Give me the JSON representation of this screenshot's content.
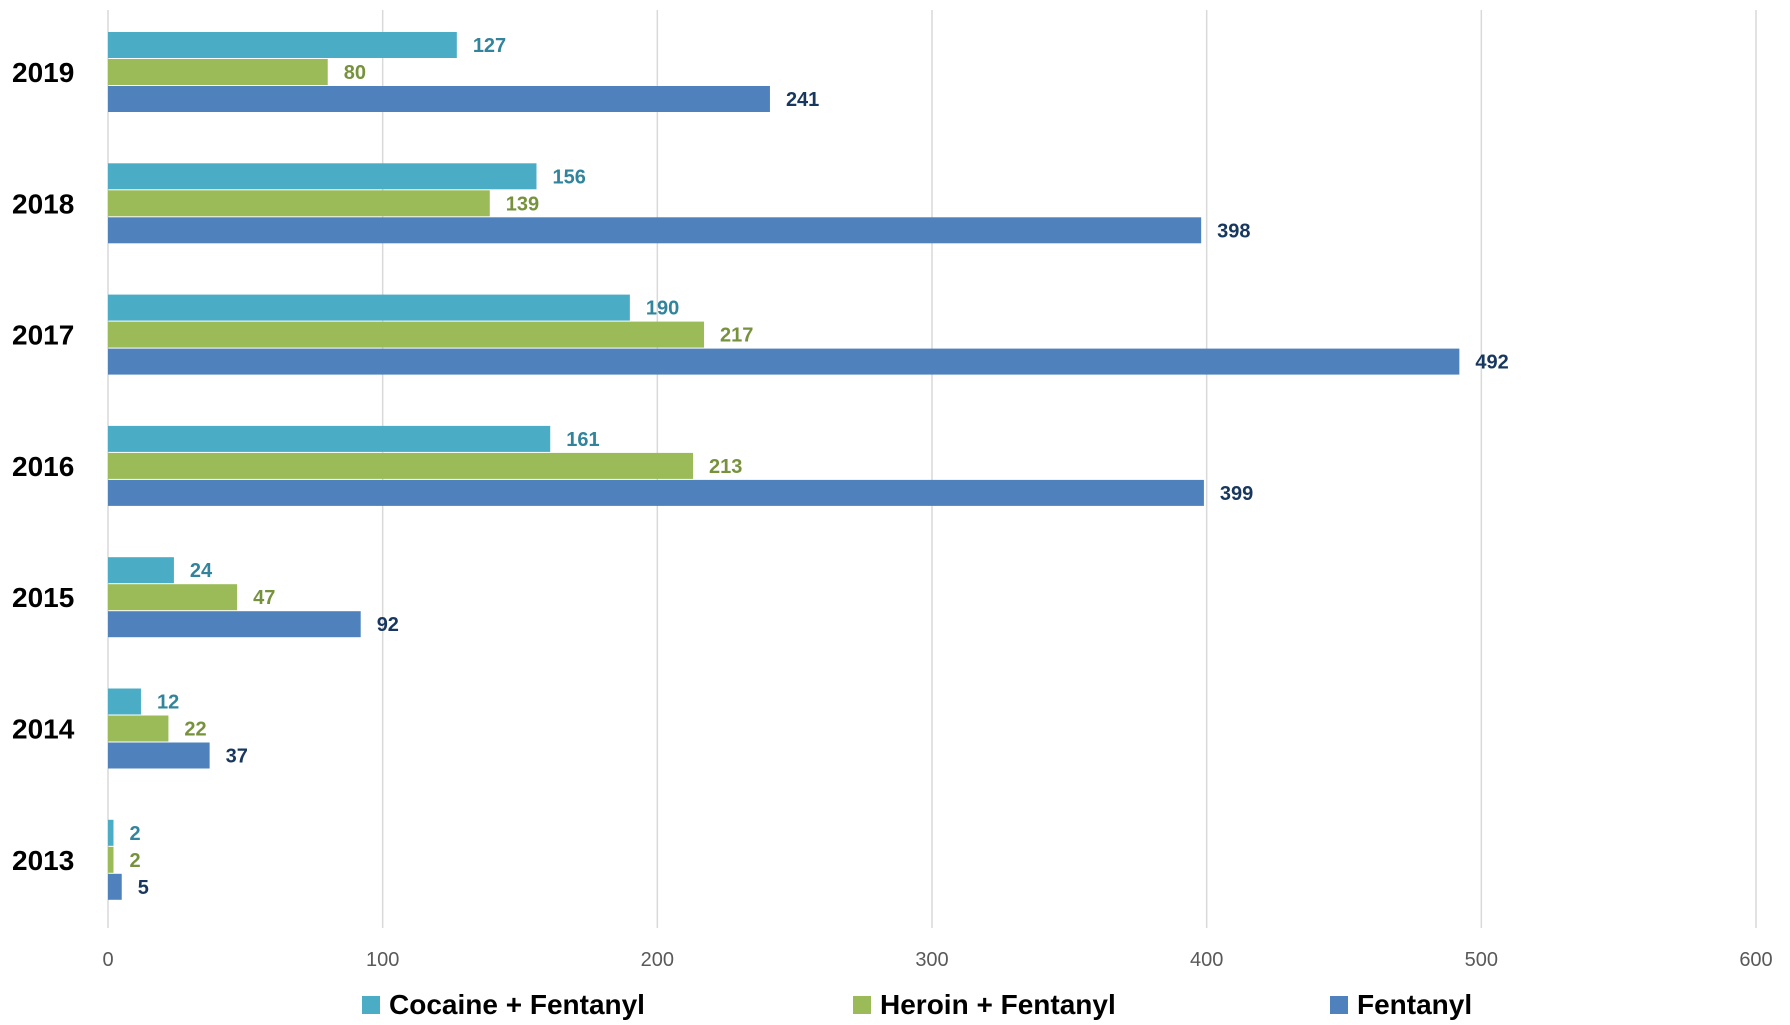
{
  "chart_data": {
    "type": "bar",
    "orientation": "horizontal",
    "categories": [
      "2019",
      "2018",
      "2017",
      "2016",
      "2015",
      "2014",
      "2013"
    ],
    "series": [
      {
        "name": "Cocaine + Fentanyl",
        "color": "#4bacc6",
        "label_color": "#31849b",
        "values": [
          127,
          156,
          190,
          161,
          24,
          12,
          2
        ]
      },
      {
        "name": "Heroin + Fentanyl",
        "color": "#9bbb59",
        "label_color": "#76923c",
        "values": [
          80,
          139,
          217,
          213,
          47,
          22,
          2
        ]
      },
      {
        "name": "Fentanyl",
        "color": "#4f81bd",
        "label_color": "#17375e",
        "values": [
          241,
          398,
          492,
          399,
          92,
          37,
          5
        ]
      }
    ],
    "xlim": [
      0,
      600
    ],
    "xticks": [
      "0",
      "100",
      "200",
      "300",
      "400",
      "500",
      "600"
    ],
    "grid": true,
    "legend_position": "bottom"
  }
}
